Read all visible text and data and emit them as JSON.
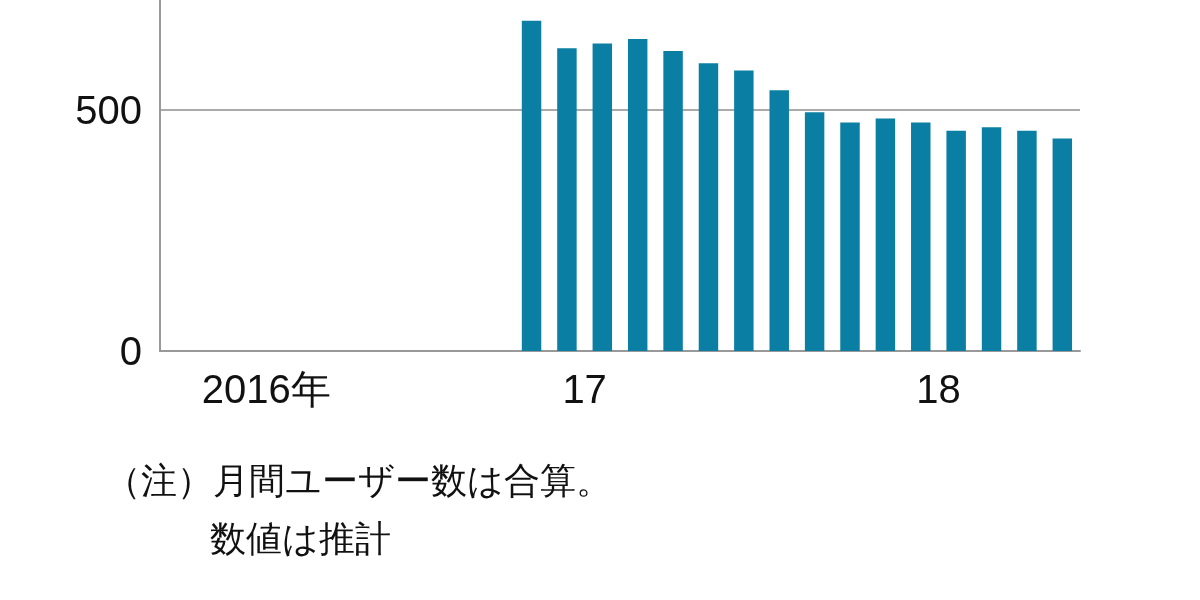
{
  "chart_data": {
    "type": "bar",
    "categories": [
      null,
      null,
      "2016年",
      null,
      null,
      null,
      null,
      null,
      null,
      null,
      null,
      "17",
      null,
      null,
      null,
      null,
      null,
      null,
      null,
      null,
      null,
      "18",
      null,
      null,
      null,
      null
    ],
    "values": [
      null,
      null,
      null,
      null,
      null,
      null,
      null,
      null,
      null,
      null,
      685,
      628,
      638,
      647,
      622,
      597,
      582,
      541,
      495,
      474,
      482,
      474,
      457,
      464,
      457,
      441
    ],
    "color": "#0a7fa3",
    "ylim": [
      0,
      728
    ],
    "yticks": [
      0,
      500
    ],
    "grid": "y",
    "annotations": [
      "（注）月間ユーザー数は合算。",
      "数値は推計"
    ]
  }
}
